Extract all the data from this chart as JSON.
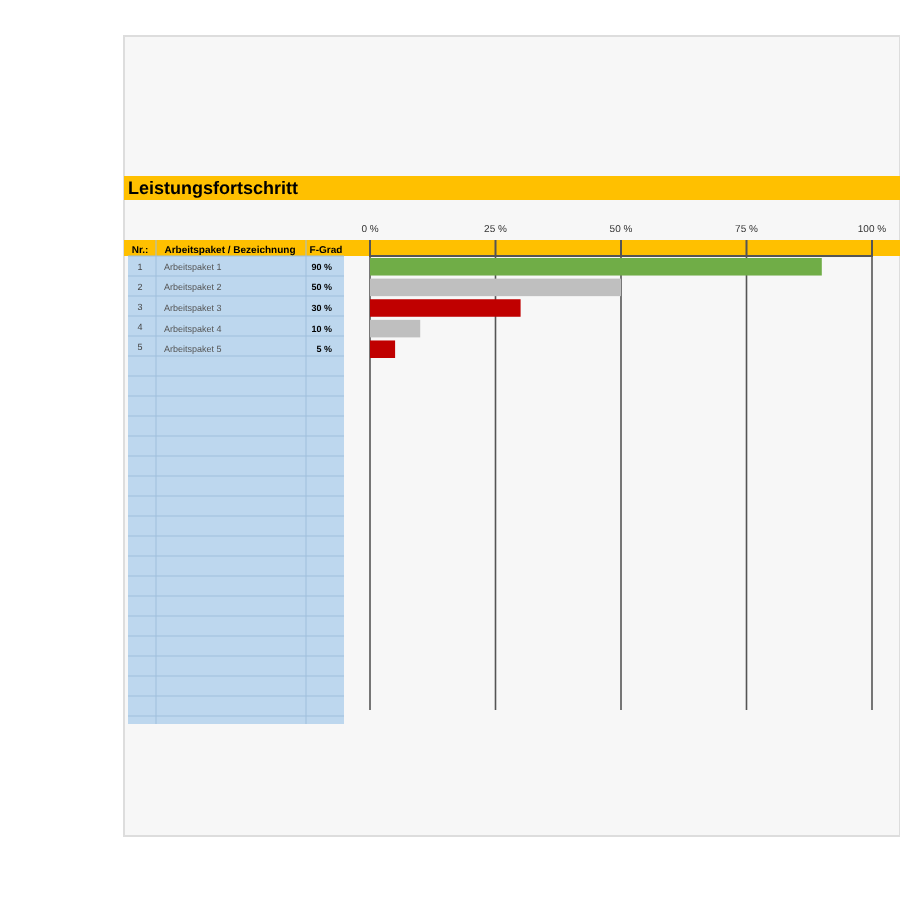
{
  "chart_data": {
    "type": "bar",
    "orientation": "horizontal",
    "title": "Leistungsfortschritt",
    "categories": [
      "Arbeitspaket 1",
      "Arbeitspaket 2",
      "Arbeitspaket 3",
      "Arbeitspaket 4",
      "Arbeitspaket 5"
    ],
    "values": [
      90,
      50,
      30,
      10,
      5
    ],
    "colors": [
      "#70ad47",
      "#bfbfbf",
      "#c00000",
      "#bfbfbf",
      "#c00000"
    ],
    "value_labels": [
      "90 %",
      "50 %",
      "30 %",
      "10 %",
      "5 %"
    ],
    "x2lim": [
      0,
      100
    ],
    "x2ticks": [
      {
        "value": 0,
        "label": "0 %"
      },
      {
        "value": 25,
        "label": "25 %"
      },
      {
        "value": 50,
        "label": "50 %"
      },
      {
        "value": 75,
        "label": "75 %"
      },
      {
        "value": 100,
        "label": "100 %"
      }
    ],
    "grid": "x",
    "annotations": [
      "Nr.:",
      "Arbeitspaket / Bezeichnung",
      "F-Grad",
      "1",
      "2",
      "3",
      "4",
      "5"
    ]
  }
}
